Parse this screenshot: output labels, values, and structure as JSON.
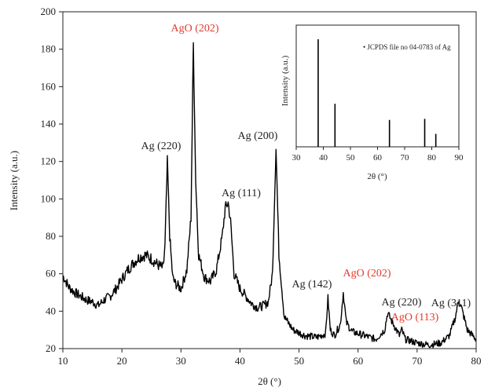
{
  "chart_data": [
    {
      "type": "line",
      "xlabel": "2θ (°)",
      "ylabel": "Intensity (a.u.)",
      "xlim": [
        10,
        80
      ],
      "ylim": [
        20,
        200
      ],
      "xticks": [
        10,
        20,
        30,
        40,
        50,
        60,
        70,
        80
      ],
      "yticks": [
        20,
        40,
        60,
        80,
        100,
        120,
        140,
        160,
        180,
        200
      ],
      "grid": false,
      "series": [
        {
          "x": [
            10,
            11,
            12,
            13,
            14,
            15,
            16,
            17,
            18,
            19,
            20,
            21,
            22,
            23,
            24,
            25,
            26,
            27,
            27.3,
            27.7,
            28.1,
            28.6,
            29,
            30,
            31,
            31.7,
            32.1,
            32.5,
            33,
            34,
            35,
            36,
            37,
            37.5,
            38,
            38.4,
            39,
            40,
            41,
            42,
            43,
            44,
            44.8,
            45.5,
            46.1,
            46.6,
            47.5,
            49,
            51,
            53,
            54.5,
            54.9,
            55.3,
            56,
            57,
            57.5,
            58,
            59,
            61,
            63,
            64.5,
            65,
            66,
            67,
            67.4,
            68,
            70,
            72,
            74,
            75.5,
            76.5,
            77,
            77.5,
            78.5,
            80
          ],
          "y": [
            59,
            53,
            50,
            48,
            46,
            45,
            43,
            46,
            48,
            52,
            57,
            62,
            66,
            69,
            70,
            68,
            65,
            63,
            75,
            120,
            80,
            58,
            55,
            52,
            62,
            90,
            183,
            110,
            70,
            58,
            56,
            62,
            80,
            95,
            98,
            88,
            60,
            52,
            48,
            44,
            42,
            43,
            45,
            60,
            128,
            70,
            37,
            30,
            27,
            26,
            28,
            47,
            30,
            27,
            33,
            50,
            34,
            29,
            27,
            25,
            30,
            39,
            33,
            27,
            30,
            25,
            23,
            22,
            23,
            27,
            37,
            46,
            42,
            30,
            25
          ]
        }
      ],
      "annotations": [
        {
          "text": "AgO (202)",
          "color": "#e03a2e"
        },
        {
          "text": "Ag (220)",
          "color": "#222222"
        },
        {
          "text": "Ag (111)",
          "color": "#222222"
        },
        {
          "text": "Ag (200)",
          "color": "#222222"
        },
        {
          "text": "Ag (142)",
          "color": "#222222"
        },
        {
          "text": "AgO (202)",
          "color": "#e03a2e"
        },
        {
          "text": "Ag (220)",
          "color": "#222222"
        },
        {
          "text": "AgO (113)",
          "color": "#e03a2e"
        },
        {
          "text": "Ag (311)",
          "color": "#222222"
        }
      ]
    },
    {
      "type": "bar",
      "xlabel": "2θ (°)",
      "ylabel": "Intensity (a.u.)",
      "xlim": [
        30,
        90
      ],
      "xticks": [
        30,
        40,
        50,
        60,
        70,
        80,
        90
      ],
      "legend": "JCPDS file no 04-0783 of Ag",
      "legend_position": "top-right",
      "sticks": [
        {
          "x": 38.1,
          "value": 100
        },
        {
          "x": 44.3,
          "value": 40
        },
        {
          "x": 64.4,
          "value": 25
        },
        {
          "x": 77.4,
          "value": 26
        },
        {
          "x": 81.5,
          "value": 12
        }
      ]
    }
  ],
  "colors": {
    "line": "#000000",
    "axis": "#222222",
    "highlight_red": "#e03a2e"
  }
}
